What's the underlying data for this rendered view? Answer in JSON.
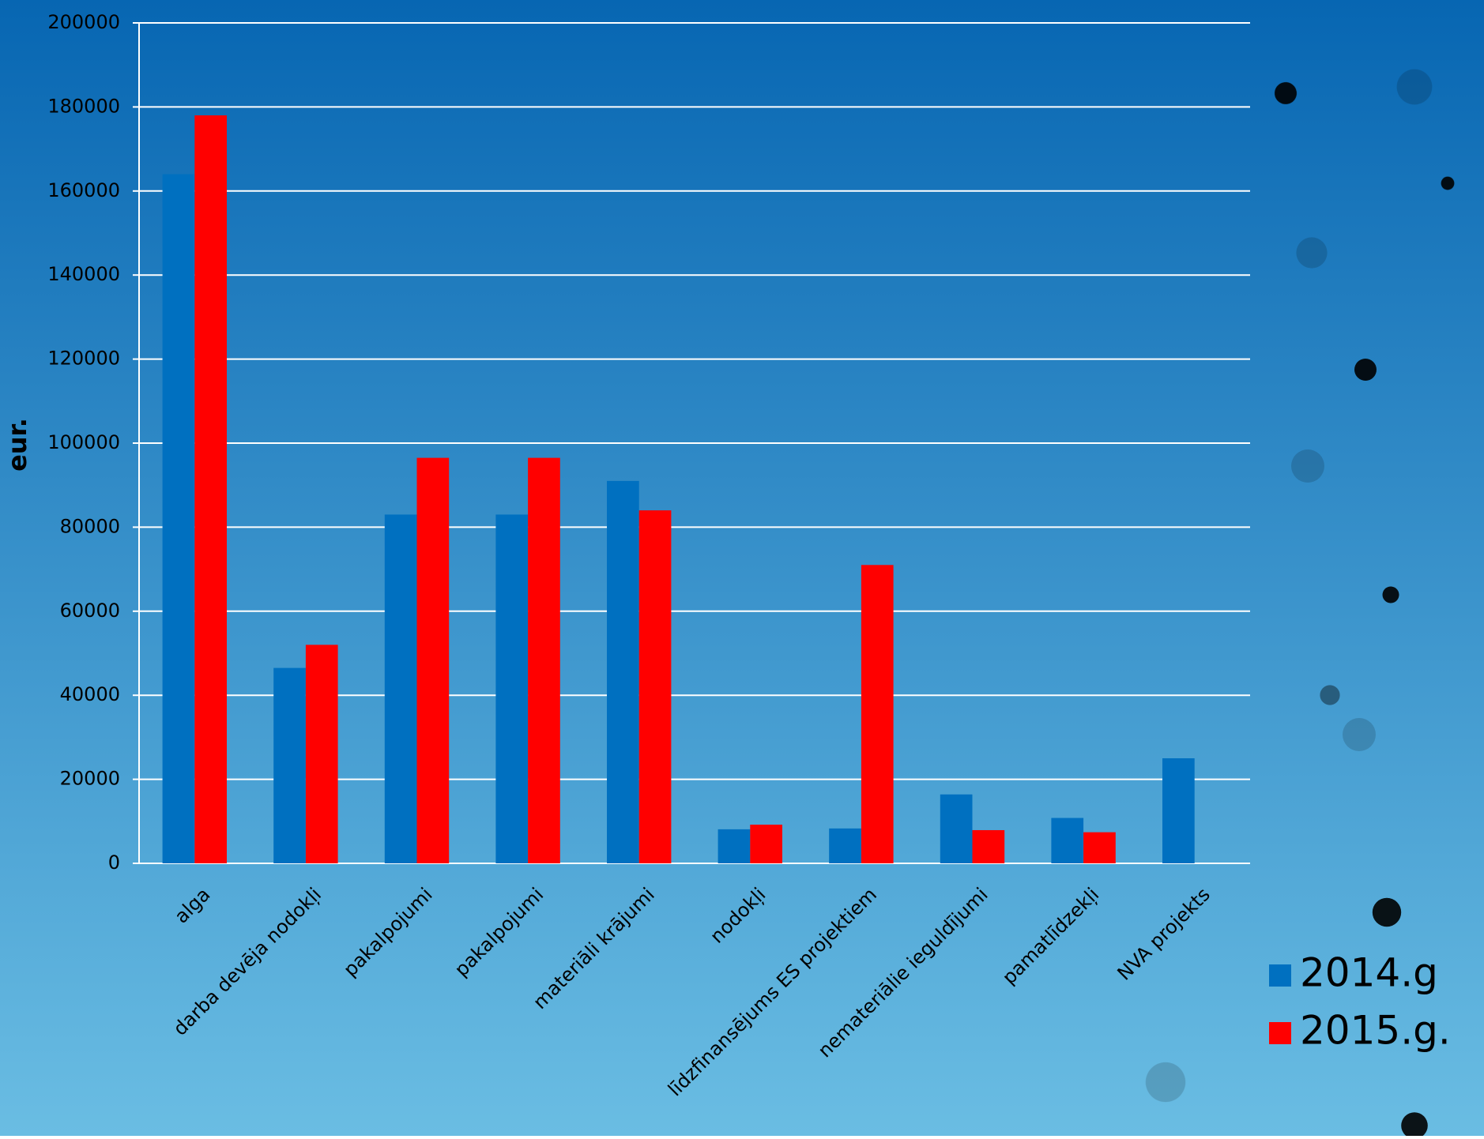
{
  "chart_data": {
    "type": "bar",
    "y_label": "eur.",
    "categories": [
      "alga",
      "darba devēja nodokļi",
      "pakalpojumi",
      "pakalpojumi",
      "materiāli krājumi",
      "nodokļi",
      "līdzfinansējums ES projektiem",
      "nemateriālie ieguldījumi",
      "pamatlīdzekļi",
      "NVA projekts"
    ],
    "series": [
      {
        "name": "2014.g",
        "color": "#0070c0",
        "values": [
          164000,
          46500,
          83000,
          83000,
          91000,
          8100,
          8300,
          16400,
          10800,
          25000
        ]
      },
      {
        "name": "2015.g.",
        "color": "#ff0000",
        "values": [
          178000,
          52000,
          96500,
          96500,
          84000,
          9200,
          71000,
          7900,
          7400,
          null
        ]
      }
    ],
    "ylim": [
      0,
      200000
    ],
    "yticks": [
      0,
      20000,
      40000,
      60000,
      80000,
      100000,
      120000,
      140000,
      160000,
      180000,
      200000
    ],
    "grid": true
  }
}
